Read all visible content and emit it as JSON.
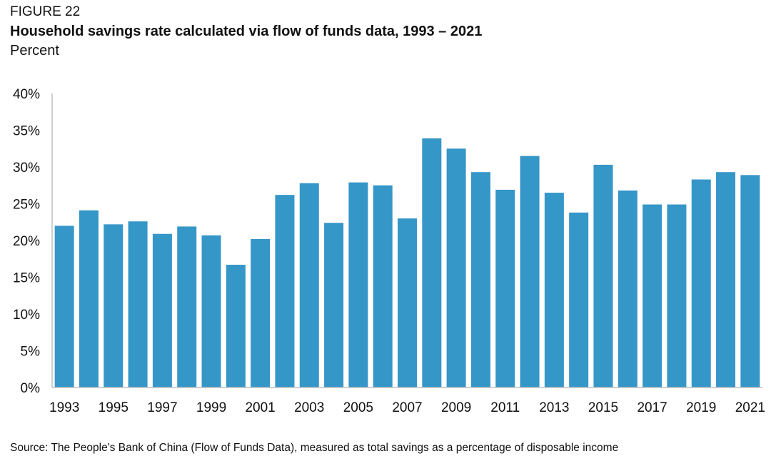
{
  "header": {
    "figure_label": "FIGURE 22",
    "title": "Household savings rate calculated via flow of funds data, 1993 – 2021",
    "subtitle": "Percent"
  },
  "source": "Source: The People's Bank of China (Flow of Funds Data), measured as total savings as a percentage of disposable income",
  "colors": {
    "bar": "#3596c8",
    "axis": "#bfbfbf"
  },
  "chart_data": {
    "type": "bar",
    "title": "Household savings rate calculated via flow of funds data, 1993 – 2021",
    "ylabel": "",
    "xlabel": "",
    "ylim": [
      0,
      40
    ],
    "yticks": [
      0,
      5,
      10,
      15,
      20,
      25,
      30,
      35,
      40
    ],
    "ytick_labels": [
      "0%",
      "5%",
      "10%",
      "15%",
      "20%",
      "25%",
      "30%",
      "35%",
      "40%"
    ],
    "grid": false,
    "categories": [
      "1993",
      "1994",
      "1995",
      "1996",
      "1997",
      "1998",
      "1999",
      "2000",
      "2001",
      "2002",
      "2003",
      "2004",
      "2005",
      "2006",
      "2007",
      "2008",
      "2009",
      "2010",
      "2011",
      "2012",
      "2013",
      "2014",
      "2015",
      "2016",
      "2017",
      "2018",
      "2019",
      "2020",
      "2021"
    ],
    "x_tick_labels": [
      "1993",
      "",
      "1995",
      "",
      "1997",
      "",
      "1999",
      "",
      "2001",
      "",
      "2003",
      "",
      "2005",
      "",
      "2007",
      "",
      "2009",
      "",
      "2011",
      "",
      "2013",
      "",
      "2015",
      "",
      "2017",
      "",
      "2019",
      "",
      "2021"
    ],
    "values": [
      22.0,
      24.1,
      22.2,
      22.6,
      20.9,
      21.9,
      20.7,
      16.7,
      20.2,
      26.2,
      27.8,
      22.4,
      27.9,
      27.5,
      23.0,
      33.9,
      32.5,
      29.3,
      26.9,
      31.5,
      26.5,
      23.8,
      30.3,
      26.8,
      24.9,
      24.9,
      28.3,
      29.3,
      28.9
    ]
  }
}
